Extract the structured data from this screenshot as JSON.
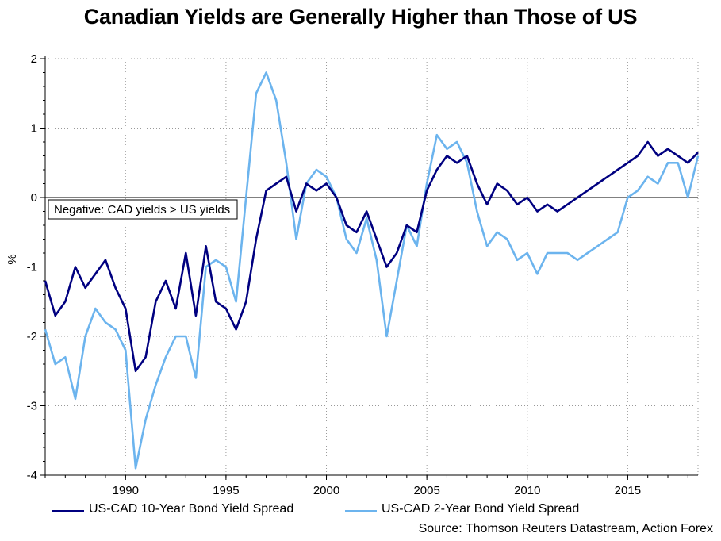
{
  "chart_data": {
    "type": "line",
    "title": "Canadian Yields are Generally Higher than Those of US",
    "ylabel": "%",
    "xlabel": "",
    "ylim": [
      -4,
      2
    ],
    "xlim": [
      1986,
      2018.5
    ],
    "xticks": [
      "1990",
      "1995",
      "2000",
      "2005",
      "2010",
      "2015"
    ],
    "yticks": [
      "2",
      "1",
      "0",
      "-1",
      "-2",
      "-3",
      "-4"
    ],
    "grid": true,
    "annotation": "Negative: CAD yields > US yields",
    "source": "Source: Thomson Reuters Datastream, Action Forex",
    "series": [
      {
        "name": "US-CAD 10-Year Bond Yield Spread",
        "color": "#000080",
        "x": [
          1986,
          1986.5,
          1987,
          1987.5,
          1988,
          1988.5,
          1989,
          1989.5,
          1990,
          1990.5,
          1991,
          1991.5,
          1992,
          1992.5,
          1993,
          1993.5,
          1994,
          1994.5,
          1995,
          1995.5,
          1996,
          1996.5,
          1997,
          1997.5,
          1998,
          1998.5,
          1999,
          1999.5,
          2000,
          2000.5,
          2001,
          2001.5,
          2002,
          2002.5,
          2003,
          2003.5,
          2004,
          2004.5,
          2005,
          2005.5,
          2006,
          2006.5,
          2007,
          2007.5,
          2008,
          2008.5,
          2009,
          2009.5,
          2010,
          2010.5,
          2011,
          2011.5,
          2012,
          2012.5,
          2013,
          2013.5,
          2014,
          2014.5,
          2015,
          2015.5,
          2016,
          2016.5,
          2017,
          2017.5,
          2018,
          2018.5
        ],
        "values": [
          -1.2,
          -1.7,
          -1.5,
          -1.0,
          -1.3,
          -1.1,
          -0.9,
          -1.3,
          -1.6,
          -2.5,
          -2.3,
          -1.5,
          -1.2,
          -1.6,
          -0.8,
          -1.7,
          -0.7,
          -1.5,
          -1.6,
          -1.9,
          -1.5,
          -0.6,
          0.1,
          0.2,
          0.3,
          -0.2,
          0.2,
          0.1,
          0.2,
          0.0,
          -0.4,
          -0.5,
          -0.2,
          -0.6,
          -1.0,
          -0.8,
          -0.4,
          -0.5,
          0.1,
          0.4,
          0.6,
          0.5,
          0.6,
          0.2,
          -0.1,
          0.2,
          0.1,
          -0.1,
          0.0,
          -0.2,
          -0.1,
          -0.2,
          -0.1,
          0.0,
          0.1,
          0.2,
          0.3,
          0.4,
          0.5,
          0.6,
          0.8,
          0.6,
          0.7,
          0.6,
          0.5,
          0.65
        ]
      },
      {
        "name": "US-CAD 2-Year Bond Yield Spread",
        "color": "#6cb4ee",
        "x": [
          1986,
          1986.5,
          1987,
          1987.5,
          1988,
          1988.5,
          1989,
          1989.5,
          1990,
          1990.5,
          1991,
          1991.5,
          1992,
          1992.5,
          1993,
          1993.5,
          1994,
          1994.5,
          1995,
          1995.5,
          1996,
          1996.5,
          1997,
          1997.5,
          1998,
          1998.5,
          1999,
          1999.5,
          2000,
          2000.5,
          2001,
          2001.5,
          2002,
          2002.5,
          2003,
          2003.5,
          2004,
          2004.5,
          2005,
          2005.5,
          2006,
          2006.5,
          2007,
          2007.5,
          2008,
          2008.5,
          2009,
          2009.5,
          2010,
          2010.5,
          2011,
          2011.5,
          2012,
          2012.5,
          2013,
          2013.5,
          2014,
          2014.5,
          2015,
          2015.5,
          2016,
          2016.5,
          2017,
          2017.5,
          2018,
          2018.5
        ],
        "values": [
          -1.9,
          -2.4,
          -2.3,
          -2.9,
          -2.0,
          -1.6,
          -1.8,
          -1.9,
          -2.2,
          -3.9,
          -3.2,
          -2.7,
          -2.3,
          -2.0,
          -2.0,
          -2.6,
          -1.0,
          -0.9,
          -1.0,
          -1.5,
          0.0,
          1.5,
          1.8,
          1.4,
          0.5,
          -0.6,
          0.2,
          0.4,
          0.3,
          0.0,
          -0.6,
          -0.8,
          -0.3,
          -0.9,
          -2.0,
          -1.2,
          -0.4,
          -0.7,
          0.2,
          0.9,
          0.7,
          0.8,
          0.5,
          -0.2,
          -0.7,
          -0.5,
          -0.6,
          -0.9,
          -0.8,
          -1.1,
          -0.8,
          -0.8,
          -0.8,
          -0.9,
          -0.8,
          -0.7,
          -0.6,
          -0.5,
          0.0,
          0.1,
          0.3,
          0.2,
          0.5,
          0.5,
          0.0,
          0.6
        ]
      }
    ]
  }
}
